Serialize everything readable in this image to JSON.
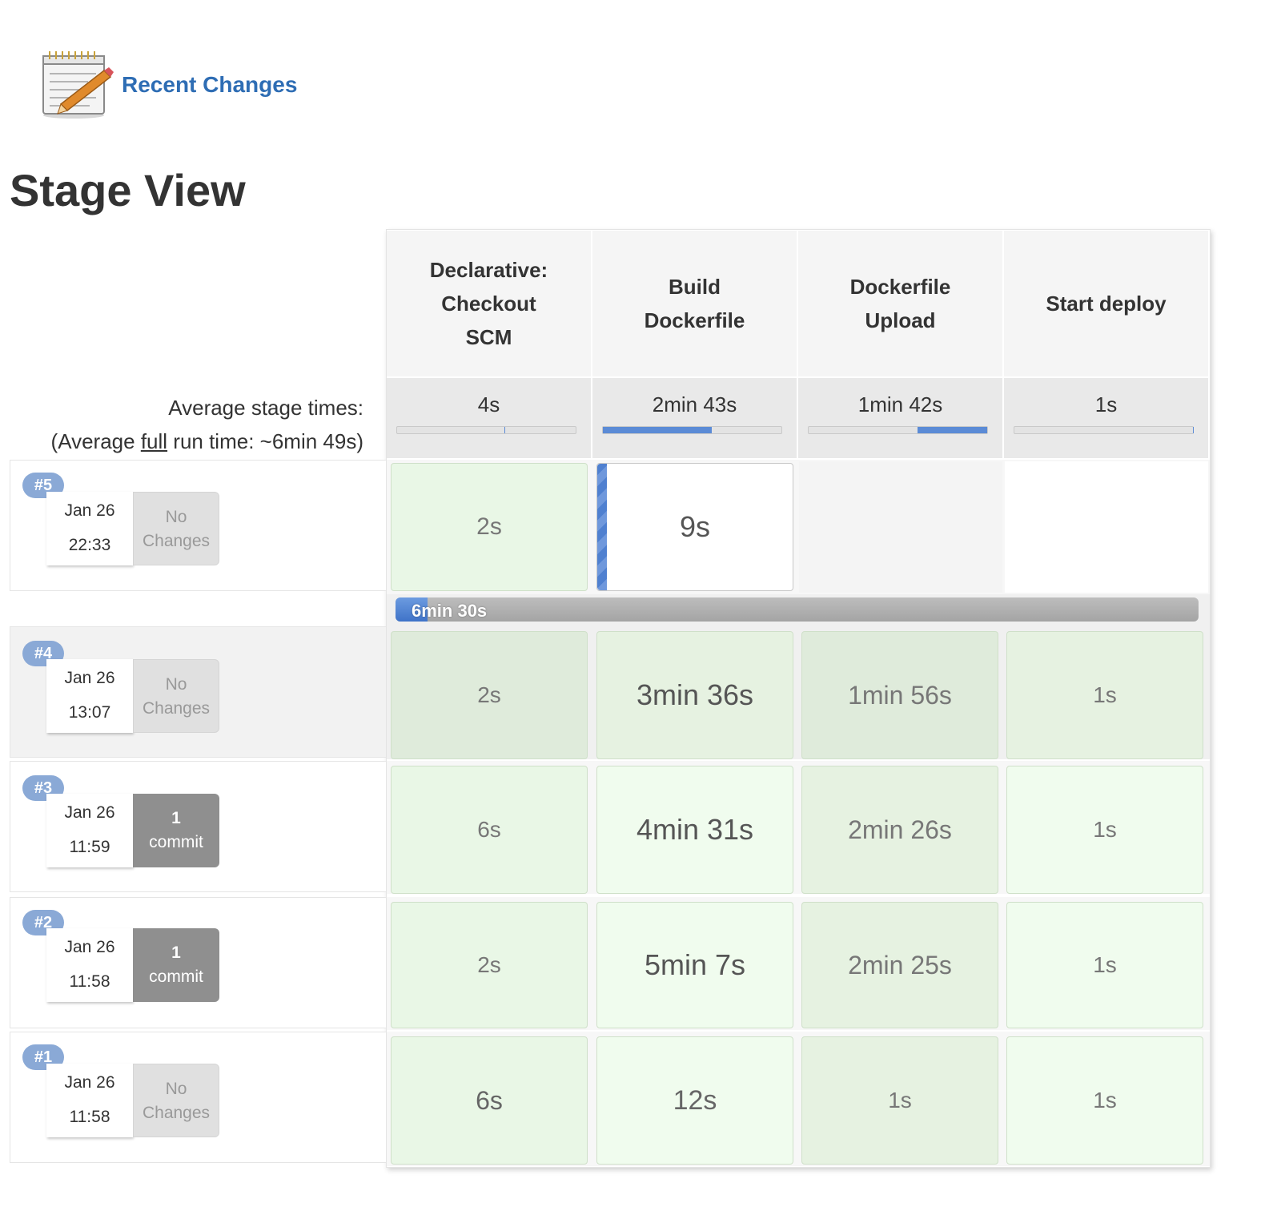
{
  "recent_changes": {
    "label": "Recent Changes",
    "icon": "notepad-pencil-icon"
  },
  "page_title": "Stage View",
  "avg": {
    "line1": "Average stage times:",
    "line2_prefix": "(Average ",
    "line2_link": "full",
    "line2_suffix": " run time: ~6min 49s)"
  },
  "stages": [
    {
      "name": "Declarative: Checkout SCM",
      "lines": [
        "Declarative:",
        "Checkout",
        "SCM"
      ],
      "avg": "4s",
      "bar_start": 0.6,
      "bar_end": 0.6
    },
    {
      "name": "Build Dockerfile",
      "lines": [
        "Build",
        "Dockerfile"
      ],
      "avg": "2min 43s",
      "bar_start": 0.0,
      "bar_end": 0.61
    },
    {
      "name": "Dockerfile Upload",
      "lines": [
        "Dockerfile",
        "Upload"
      ],
      "avg": "1min 42s",
      "bar_start": 0.61,
      "bar_end": 1.0
    },
    {
      "name": "Start deploy",
      "lines": [
        "Start deploy"
      ],
      "avg": "1s",
      "bar_start": 1.0,
      "bar_end": 1.0
    }
  ],
  "builds": [
    {
      "num": "#5",
      "date": "Jan 26",
      "time": "22:33",
      "changes": [
        "No",
        "Changes"
      ],
      "change_type": "none",
      "cells": [
        "2s",
        "9s",
        "",
        ""
      ],
      "running": true,
      "progress": {
        "label": "6min 30s",
        "fraction": 0.04
      }
    },
    {
      "num": "#4",
      "date": "Jan 26",
      "time": "13:07",
      "changes": [
        "No",
        "Changes"
      ],
      "change_type": "none",
      "cells": [
        "2s",
        "3min 36s",
        "1min 56s",
        "1s"
      ]
    },
    {
      "num": "#3",
      "date": "Jan 26",
      "time": "11:59",
      "changes": [
        "1",
        "commit"
      ],
      "change_type": "commit",
      "cells": [
        "6s",
        "4min 31s",
        "2min 26s",
        "1s"
      ]
    },
    {
      "num": "#2",
      "date": "Jan 26",
      "time": "11:58",
      "changes": [
        "1",
        "commit"
      ],
      "change_type": "commit",
      "cells": [
        "2s",
        "5min 7s",
        "2min 25s",
        "1s"
      ]
    },
    {
      "num": "#1",
      "date": "Jan 26",
      "time": "11:58",
      "changes": [
        "No",
        "Changes"
      ],
      "change_type": "none",
      "cells": [
        "6s",
        "12s",
        "1s",
        "1s"
      ]
    }
  ]
}
